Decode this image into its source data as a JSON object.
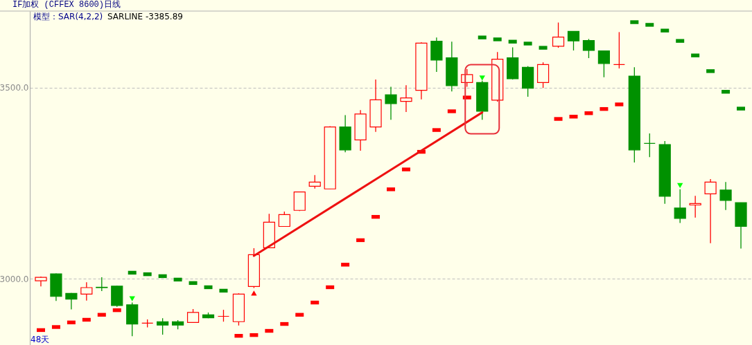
{
  "chart_data": {
    "type": "candlestick",
    "title": "IF加权 (CFFEX 8600)日线",
    "annotations": [
      "模型：SAR(4,2,2)",
      "SARLINE -3385.89",
      "48天"
    ],
    "categories": [
      null,
      null,
      null,
      null,
      null,
      null,
      null,
      null,
      null,
      null,
      null,
      null,
      null,
      null,
      null,
      null,
      null,
      null,
      null,
      null,
      null,
      null,
      null,
      null,
      null,
      null,
      null,
      null,
      null,
      null,
      null,
      null,
      null,
      null,
      null,
      null,
      null,
      null,
      null,
      null,
      null,
      null,
      null,
      null,
      null,
      null,
      null
    ],
    "ohlc": [
      [
        2995,
        3006,
        2980,
        3004
      ],
      [
        3013,
        3014,
        2942,
        2954
      ],
      [
        2962,
        2963,
        2920,
        2947
      ],
      [
        2960,
        2991,
        2943,
        2977
      ],
      [
        2978,
        3004,
        2968,
        2977
      ],
      [
        2981,
        2982,
        2927,
        2930
      ],
      [
        2932,
        2938,
        2850,
        2882
      ],
      [
        2884,
        2894,
        2873,
        2884
      ],
      [
        2888,
        2897,
        2854,
        2879
      ],
      [
        2888,
        2892,
        2868,
        2879
      ],
      [
        2886,
        2921,
        2886,
        2912
      ],
      [
        2906,
        2912,
        2897,
        2898
      ],
      [
        2902,
        2919,
        2888,
        2902
      ],
      [
        2888,
        2962,
        2878,
        2960
      ],
      [
        2980,
        3080,
        2976,
        3063
      ],
      [
        3081,
        3170,
        3081,
        3148
      ],
      [
        3137,
        3176,
        3137,
        3168
      ],
      [
        3179,
        3227,
        3177,
        3227
      ],
      [
        3242,
        3271,
        3236,
        3253
      ],
      [
        3235,
        3399,
        3235,
        3397
      ],
      [
        3397,
        3428,
        3331,
        3337
      ],
      [
        3363,
        3441,
        3335,
        3431
      ],
      [
        3397,
        3521,
        3384,
        3468
      ],
      [
        3481,
        3502,
        3416,
        3458
      ],
      [
        3464,
        3506,
        3436,
        3473
      ],
      [
        3493,
        3618,
        3469,
        3616
      ],
      [
        3621,
        3631,
        3541,
        3572
      ],
      [
        3578,
        3620,
        3490,
        3505
      ],
      [
        3513,
        3548,
        3502,
        3534
      ],
      [
        3513,
        3518,
        3416,
        3438
      ],
      [
        3467,
        3593,
        3463,
        3574
      ],
      [
        3578,
        3605,
        3521,
        3523
      ],
      [
        3553,
        3556,
        3476,
        3498
      ],
      [
        3513,
        3566,
        3499,
        3560
      ],
      [
        3608,
        3670,
        3604,
        3632
      ],
      [
        3647,
        3647,
        3597,
        3622
      ],
      [
        3623,
        3627,
        3577,
        3597
      ],
      [
        3596,
        3596,
        3527,
        3563
      ],
      [
        3560,
        3645,
        3550,
        3560
      ],
      [
        3530,
        3553,
        3304,
        3337
      ],
      [
        3354,
        3380,
        3318,
        3354
      ],
      [
        3351,
        3360,
        3196,
        3216
      ],
      [
        3185,
        3234,
        3146,
        3158
      ],
      [
        3193,
        3217,
        3160,
        3197
      ],
      [
        3222,
        3261,
        3093,
        3253
      ],
      [
        3232,
        3253,
        3180,
        3205
      ],
      [
        3199,
        3199,
        3079,
        3137
      ]
    ],
    "colors": [
      "#ff0000",
      "#009100",
      "#009100",
      "#ff0000",
      "#009100",
      "#009100",
      "#009100",
      "#ff0000",
      "#009100",
      "#009100",
      "#ff0000",
      "#009100",
      "#ff0000",
      "#ff0000",
      "#ff0000",
      "#ff0000",
      "#ff0000",
      "#ff0000",
      "#ff0000",
      "#ff0000",
      "#009100",
      "#ff0000",
      "#ff0000",
      "#009100",
      "#ff0000",
      "#ff0000",
      "#009100",
      "#009100",
      "#ff0000",
      "#009100",
      "#ff0000",
      "#009100",
      "#009100",
      "#ff0000",
      "#ff0000",
      "#009100",
      "#009100",
      "#009100",
      "#ff0000",
      "#009100",
      "#009100",
      "#009100",
      "#009100",
      "#ff0000",
      "#ff0000",
      "#009100",
      "#009100"
    ],
    "ylim": [
      2827,
      3700
    ],
    "yticks": [
      {
        "value": 3000,
        "label": "3000.0"
      },
      {
        "value": 3500,
        "label": "3500.0"
      }
    ],
    "grid": "y",
    "tick_labels": "y",
    "series": [
      {
        "type": "scatter",
        "marker": "square",
        "color": "#ff0000",
        "values": [
          2866,
          2874,
          2886,
          2893,
          2906,
          2918,
          null,
          null,
          null,
          null,
          null,
          null,
          null,
          2851,
          2853,
          2864,
          2882,
          2906,
          2938,
          2978,
          3037,
          3101,
          3162,
          3234,
          3286,
          3332,
          3389,
          3438,
          3474,
          null,
          null,
          null,
          null,
          null,
          3418,
          3424,
          3433,
          3444,
          3456,
          null,
          null,
          null,
          null,
          null,
          null,
          null,
          null
        ]
      },
      {
        "type": "scatter",
        "marker": "square",
        "color": "#009100",
        "values": [
          null,
          null,
          null,
          null,
          null,
          null,
          3016,
          3012,
          3007,
          2998,
          2989,
          2978,
          2969,
          null,
          null,
          null,
          null,
          null,
          null,
          null,
          null,
          null,
          null,
          null,
          null,
          null,
          null,
          null,
          null,
          3631,
          3626,
          3620,
          3615,
          3604,
          null,
          null,
          null,
          null,
          null,
          3671,
          3664,
          3649,
          3622,
          3584,
          3543,
          3489,
          3445
        ]
      },
      {
        "type": "scatter",
        "marker": "triangle",
        "color": "#00ff00",
        "values": [
          null,
          null,
          null,
          null,
          null,
          null,
          2948,
          null,
          null,
          null,
          null,
          null,
          null,
          null,
          null,
          null,
          null,
          null,
          null,
          null,
          null,
          null,
          null,
          null,
          null,
          null,
          null,
          null,
          null,
          3525,
          null,
          null,
          null,
          null,
          null,
          null,
          null,
          null,
          null,
          null,
          null,
          null,
          3244,
          null,
          null,
          null,
          null
        ]
      },
      {
        "type": "scatter",
        "marker": "triangle",
        "color": "#ff0000",
        "values": [
          null,
          null,
          null,
          null,
          null,
          null,
          null,
          null,
          null,
          null,
          null,
          null,
          null,
          null,
          2963,
          null,
          null,
          null,
          null,
          null,
          null,
          null,
          null,
          null,
          null,
          null,
          null,
          null,
          null,
          null,
          null,
          null,
          null,
          null,
          null,
          null,
          null,
          null,
          null,
          null,
          null,
          null,
          null,
          null,
          null,
          null,
          null
        ]
      },
      {
        "type": "line",
        "line_style": "solid",
        "color": "#ee1111",
        "values": [
          null,
          null,
          null,
          null,
          null,
          null,
          null,
          null,
          null,
          null,
          null,
          null,
          null,
          null,
          3060,
          null,
          null,
          null,
          null,
          null,
          null,
          null,
          null,
          null,
          null,
          null,
          null,
          null,
          null,
          3435,
          null,
          null,
          null,
          null,
          null,
          null,
          null,
          null,
          null,
          null,
          null,
          null,
          null,
          null,
          null,
          null,
          null
        ]
      }
    ]
  }
}
